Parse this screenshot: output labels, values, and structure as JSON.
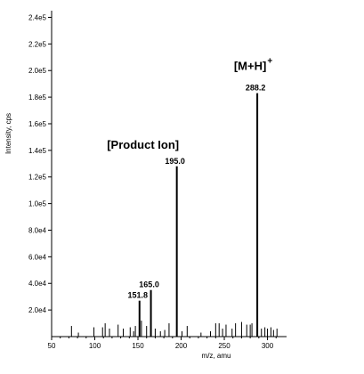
{
  "chart_data": {
    "type": "bar",
    "title": "",
    "xlabel": "m/z, amu",
    "ylabel": "Intensity, cps",
    "xlim": [
      50,
      318
    ],
    "ylim": [
      0,
      245000
    ],
    "x_ticks": [
      50,
      100,
      150,
      200,
      250,
      300
    ],
    "y_ticks": [
      {
        "value": 20000,
        "label": "2.0e4"
      },
      {
        "value": 40000,
        "label": "4.0e4"
      },
      {
        "value": 60000,
        "label": "6.0e4"
      },
      {
        "value": 80000,
        "label": "8.0e4"
      },
      {
        "value": 100000,
        "label": "1.0e5"
      },
      {
        "value": 120000,
        "label": "1.2e5"
      },
      {
        "value": 140000,
        "label": "1.4e5"
      },
      {
        "value": 160000,
        "label": "1.6e5"
      },
      {
        "value": 180000,
        "label": "1.8e5"
      },
      {
        "value": 200000,
        "label": "2.0e5"
      },
      {
        "value": 220000,
        "label": "2.2e5"
      },
      {
        "value": 240000,
        "label": "2.4e5"
      }
    ],
    "peaks": [
      {
        "mz": 73,
        "intensity": 8000
      },
      {
        "mz": 81,
        "intensity": 3000
      },
      {
        "mz": 99,
        "intensity": 7000
      },
      {
        "mz": 109,
        "intensity": 7000
      },
      {
        "mz": 112,
        "intensity": 10000
      },
      {
        "mz": 117,
        "intensity": 6000
      },
      {
        "mz": 127,
        "intensity": 9000
      },
      {
        "mz": 133,
        "intensity": 6000
      },
      {
        "mz": 141,
        "intensity": 7000
      },
      {
        "mz": 145,
        "intensity": 4000
      },
      {
        "mz": 147,
        "intensity": 8000
      },
      {
        "mz": 151.8,
        "intensity": 27000,
        "label": "151.8"
      },
      {
        "mz": 154,
        "intensity": 12000
      },
      {
        "mz": 160,
        "intensity": 8000
      },
      {
        "mz": 165.0,
        "intensity": 35000,
        "label": "165.0"
      },
      {
        "mz": 170,
        "intensity": 6000
      },
      {
        "mz": 176,
        "intensity": 4000
      },
      {
        "mz": 181,
        "intensity": 5000
      },
      {
        "mz": 186,
        "intensity": 10000
      },
      {
        "mz": 195.0,
        "intensity": 128000,
        "label": "195.0"
      },
      {
        "mz": 201,
        "intensity": 4000
      },
      {
        "mz": 207,
        "intensity": 8000
      },
      {
        "mz": 223,
        "intensity": 3000
      },
      {
        "mz": 234,
        "intensity": 4000
      },
      {
        "mz": 240,
        "intensity": 10000
      },
      {
        "mz": 244,
        "intensity": 10000
      },
      {
        "mz": 248,
        "intensity": 6000
      },
      {
        "mz": 252,
        "intensity": 9000
      },
      {
        "mz": 259,
        "intensity": 6000
      },
      {
        "mz": 263,
        "intensity": 10000
      },
      {
        "mz": 270,
        "intensity": 11000
      },
      {
        "mz": 276,
        "intensity": 9000
      },
      {
        "mz": 280,
        "intensity": 9000
      },
      {
        "mz": 282,
        "intensity": 10000
      },
      {
        "mz": 288.2,
        "intensity": 183000,
        "label": "288.2"
      },
      {
        "mz": 293,
        "intensity": 6000
      },
      {
        "mz": 297,
        "intensity": 7000
      },
      {
        "mz": 300,
        "intensity": 6000
      },
      {
        "mz": 304,
        "intensity": 7000
      },
      {
        "mz": 307,
        "intensity": 5000
      },
      {
        "mz": 311,
        "intensity": 6000
      }
    ],
    "annotations": [
      {
        "text": "[Product Ion]",
        "at_mz": 195.0
      },
      {
        "text": "[M+H]",
        "superscript": "+",
        "at_mz": 288.2
      }
    ]
  }
}
